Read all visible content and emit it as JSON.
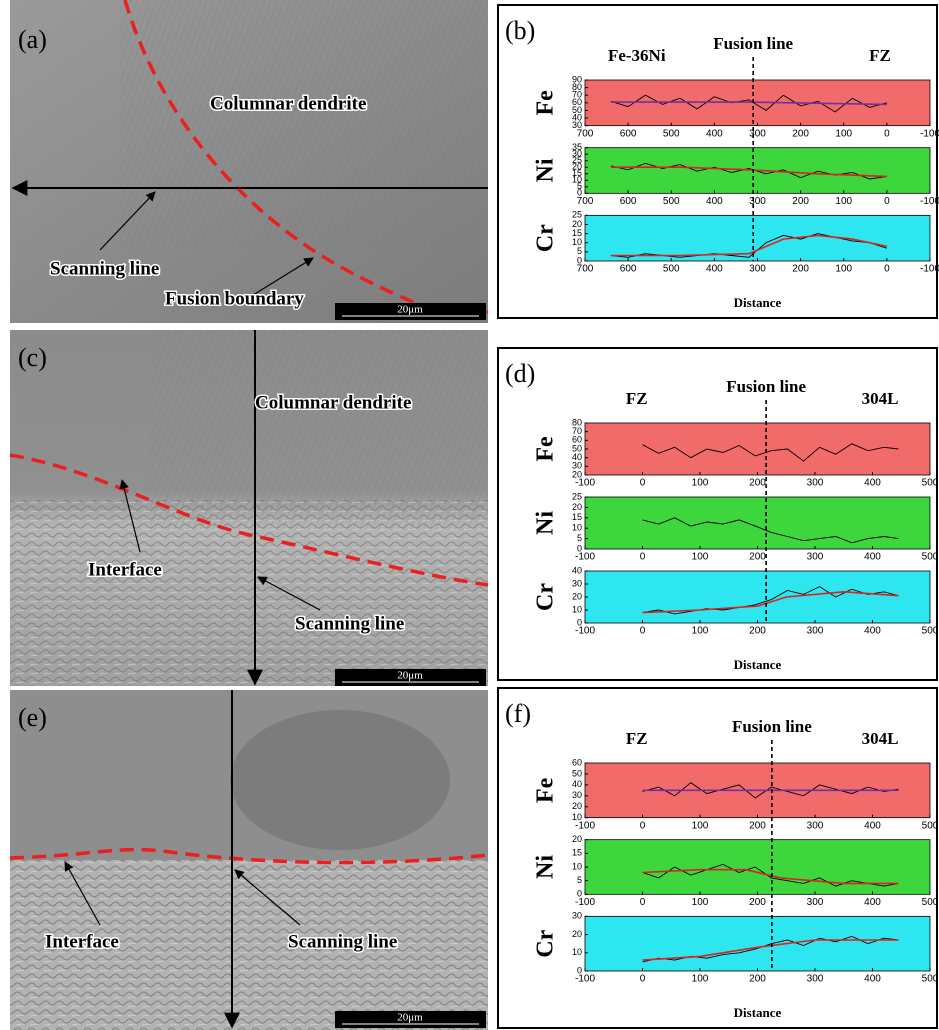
{
  "images": [
    {
      "label": "(a)",
      "annotations": [
        "Columnar dendrite",
        "Scanning line",
        "Fusion boundary"
      ],
      "scale_bar": "20μm"
    },
    {
      "label": "(c)",
      "annotations": [
        "Columnar dendrite",
        "Interface",
        "Scanning line"
      ],
      "scale_bar": "20μm"
    },
    {
      "label": "(e)",
      "annotations": [
        "Interface",
        "Scanning line"
      ],
      "scale_bar": "20μm"
    }
  ],
  "chart_data": [
    {
      "type": "line",
      "label": "(b)",
      "header_left": "Fe-36Ni",
      "fusion_label": "Fusion line",
      "header_right": "FZ",
      "x_label": "Distance",
      "fusion_x": 310,
      "xlim": [
        700,
        -100
      ],
      "xticks": [
        700,
        600,
        500,
        400,
        300,
        200,
        100,
        0,
        -100
      ],
      "subplots": [
        {
          "ylabel": "Fe",
          "background": "#f26b6b",
          "ylim": [
            30,
            90
          ],
          "yticks": [
            30,
            40,
            50,
            60,
            70,
            80,
            90
          ],
          "series": [
            {
              "color": "#000000",
              "x": [
                640,
                600,
                560,
                520,
                480,
                440,
                400,
                360,
                320,
                280,
                240,
                200,
                160,
                120,
                80,
                40,
                0
              ],
              "values": [
                62,
                55,
                70,
                58,
                66,
                52,
                68,
                60,
                64,
                50,
                70,
                56,
                62,
                48,
                66,
                54,
                60
              ]
            },
            {
              "color": "#7030a0",
              "x": [
                640,
                320,
                0
              ],
              "values": [
                61,
                61,
                58
              ]
            }
          ]
        },
        {
          "ylabel": "Ni",
          "background": "#3dd63d",
          "ylim": [
            0,
            35
          ],
          "yticks": [
            0,
            5,
            10,
            15,
            20,
            25,
            30,
            35
          ],
          "series": [
            {
              "color": "#000000",
              "x": [
                640,
                600,
                560,
                520,
                480,
                440,
                400,
                360,
                320,
                280,
                240,
                200,
                160,
                120,
                80,
                40,
                0
              ],
              "values": [
                21,
                18,
                23,
                19,
                22,
                17,
                20,
                16,
                19,
                15,
                18,
                12,
                17,
                14,
                16,
                11,
                13
              ]
            },
            {
              "color": "#e02020",
              "x": [
                640,
                480,
                320,
                160,
                0
              ],
              "values": [
                20,
                20,
                18,
                15,
                13
              ]
            }
          ]
        },
        {
          "ylabel": "Cr",
          "background": "#2ee6f0",
          "ylim": [
            0,
            25
          ],
          "yticks": [
            0,
            5,
            10,
            15,
            20,
            25
          ],
          "series": [
            {
              "color": "#000000",
              "x": [
                640,
                600,
                560,
                520,
                480,
                440,
                400,
                360,
                320,
                280,
                240,
                200,
                160,
                120,
                80,
                40,
                0
              ],
              "values": [
                3,
                2,
                4,
                3,
                2,
                3,
                4,
                3,
                2,
                10,
                14,
                12,
                15,
                13,
                11,
                10,
                7
              ]
            },
            {
              "color": "#e02020",
              "x": [
                640,
                480,
                320,
                240,
                160,
                80,
                0
              ],
              "values": [
                3,
                3,
                4,
                12,
                14,
                12,
                8
              ]
            }
          ]
        }
      ]
    },
    {
      "type": "line",
      "label": "(d)",
      "header_left": "FZ",
      "fusion_label": "Fusion line",
      "header_right": "304L",
      "x_label": "Distance",
      "fusion_x": 215,
      "xlim": [
        -100,
        500
      ],
      "xticks": [
        -100,
        0,
        100,
        200,
        300,
        400,
        500
      ],
      "subplots": [
        {
          "ylabel": "Fe",
          "background": "#f26b6b",
          "ylim": [
            20,
            80
          ],
          "yticks": [
            20,
            30,
            40,
            50,
            60,
            70,
            80
          ],
          "series": [
            {
              "color": "#000000",
              "x": [
                0,
                28,
                56,
                84,
                112,
                140,
                168,
                196,
                224,
                252,
                280,
                308,
                336,
                364,
                392,
                420,
                445
              ],
              "values": [
                55,
                45,
                52,
                40,
                50,
                46,
                54,
                42,
                48,
                50,
                36,
                52,
                44,
                56,
                48,
                52,
                50
              ]
            }
          ]
        },
        {
          "ylabel": "Ni",
          "background": "#3dd63d",
          "ylim": [
            0,
            25
          ],
          "yticks": [
            0,
            5,
            10,
            15,
            20,
            25
          ],
          "series": [
            {
              "color": "#000000",
              "x": [
                0,
                28,
                56,
                84,
                112,
                140,
                168,
                196,
                224,
                252,
                280,
                308,
                336,
                364,
                392,
                420,
                445
              ],
              "values": [
                14,
                12,
                15,
                11,
                13,
                12,
                14,
                11,
                8,
                6,
                4,
                5,
                6,
                3,
                5,
                6,
                5
              ]
            }
          ]
        },
        {
          "ylabel": "Cr",
          "background": "#2ee6f0",
          "ylim": [
            0,
            40
          ],
          "yticks": [
            0,
            10,
            20,
            30,
            40
          ],
          "series": [
            {
              "color": "#000000",
              "x": [
                0,
                28,
                56,
                84,
                112,
                140,
                168,
                196,
                224,
                252,
                280,
                308,
                336,
                364,
                392,
                420,
                445
              ],
              "values": [
                8,
                10,
                7,
                9,
                11,
                10,
                12,
                14,
                18,
                25,
                22,
                28,
                20,
                26,
                22,
                24,
                21
              ]
            },
            {
              "color": "#e02020",
              "x": [
                0,
                100,
                200,
                250,
                350,
                445
              ],
              "values": [
                8,
                10,
                13,
                20,
                24,
                21
              ]
            }
          ]
        }
      ]
    },
    {
      "type": "line",
      "label": "(f)",
      "header_left": "FZ",
      "fusion_label": "Fusion line",
      "header_right": "304L",
      "x_label": "Distance",
      "fusion_x": 225,
      "xlim": [
        -100,
        500
      ],
      "xticks": [
        -100,
        0,
        100,
        200,
        300,
        400,
        500
      ],
      "subplots": [
        {
          "ylabel": "Fe",
          "background": "#f26b6b",
          "ylim": [
            10,
            60
          ],
          "yticks": [
            10,
            20,
            30,
            40,
            50,
            60
          ],
          "series": [
            {
              "color": "#000000",
              "x": [
                0,
                28,
                56,
                84,
                112,
                140,
                168,
                196,
                224,
                252,
                280,
                308,
                336,
                364,
                392,
                420,
                445
              ],
              "values": [
                34,
                38,
                30,
                42,
                32,
                36,
                40,
                28,
                38,
                34,
                30,
                40,
                36,
                32,
                38,
                34,
                36
              ]
            },
            {
              "color": "#7030a0",
              "x": [
                0,
                445
              ],
              "values": [
                35,
                35
              ]
            }
          ]
        },
        {
          "ylabel": "Ni",
          "background": "#3dd63d",
          "ylim": [
            0,
            20
          ],
          "yticks": [
            0,
            5,
            10,
            15,
            20
          ],
          "series": [
            {
              "color": "#000000",
              "x": [
                0,
                28,
                56,
                84,
                112,
                140,
                168,
                196,
                224,
                252,
                280,
                308,
                336,
                364,
                392,
                420,
                445
              ],
              "values": [
                8,
                6,
                10,
                7,
                9,
                11,
                8,
                10,
                6,
                5,
                4,
                6,
                3,
                5,
                4,
                3,
                4
              ]
            },
            {
              "color": "#e02020",
              "x": [
                0,
                100,
                180,
                240,
                350,
                445
              ],
              "values": [
                8,
                9,
                9,
                6,
                4,
                4
              ]
            }
          ]
        },
        {
          "ylabel": "Cr",
          "background": "#2ee6f0",
          "ylim": [
            0,
            30
          ],
          "yticks": [
            0,
            10,
            20,
            30
          ],
          "series": [
            {
              "color": "#000000",
              "x": [
                0,
                28,
                56,
                84,
                112,
                140,
                168,
                196,
                224,
                252,
                280,
                308,
                336,
                364,
                392,
                420,
                445
              ],
              "values": [
                5,
                7,
                6,
                8,
                7,
                9,
                10,
                12,
                15,
                17,
                14,
                18,
                16,
                19,
                15,
                18,
                17
              ]
            },
            {
              "color": "#e02020",
              "x": [
                0,
                100,
                200,
                300,
                445
              ],
              "values": [
                6,
                8,
                13,
                17,
                17
              ]
            }
          ]
        }
      ]
    }
  ]
}
